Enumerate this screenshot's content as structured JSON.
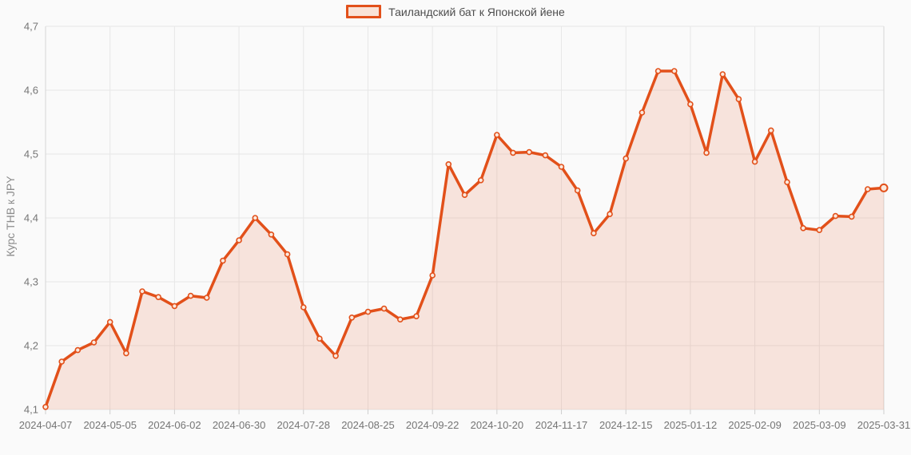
{
  "legend": {
    "label": "Таиландский бат к Японской йене"
  },
  "chart_data": {
    "type": "area",
    "title": "",
    "xlabel": "",
    "ylabel": "Курс THB к JPY",
    "series_name": "Таиландский бат к Японской йене",
    "legend_position": "top-center",
    "grid": true,
    "ylim": [
      4.1,
      4.7
    ],
    "y_tick_values": [
      4.1,
      4.2,
      4.3,
      4.4,
      4.5,
      4.6,
      4.7
    ],
    "y_tick_labels": [
      "4,1",
      "4,2",
      "4,3",
      "4,4",
      "4,5",
      "4,6",
      "4,7"
    ],
    "x_tick_indices": [
      0,
      4,
      8,
      12,
      16,
      20,
      24,
      28,
      32,
      36,
      40,
      44,
      48,
      52
    ],
    "x_tick_labels": [
      "2024-04-07",
      "2024-05-05",
      "2024-06-02",
      "2024-06-30",
      "2024-07-28",
      "2024-08-25",
      "2024-09-22",
      "2024-10-20",
      "2024-11-17",
      "2024-12-15",
      "2025-01-12",
      "2025-02-09",
      "2025-03-09",
      "2025-03-31"
    ],
    "dates": [
      "2024-04-07",
      "2024-04-14",
      "2024-04-21",
      "2024-04-28",
      "2024-05-05",
      "2024-05-12",
      "2024-05-19",
      "2024-05-26",
      "2024-06-02",
      "2024-06-09",
      "2024-06-16",
      "2024-06-23",
      "2024-06-30",
      "2024-07-07",
      "2024-07-14",
      "2024-07-21",
      "2024-07-28",
      "2024-08-04",
      "2024-08-11",
      "2024-08-18",
      "2024-08-25",
      "2024-09-01",
      "2024-09-08",
      "2024-09-15",
      "2024-09-22",
      "2024-09-29",
      "2024-10-06",
      "2024-10-13",
      "2024-10-20",
      "2024-10-27",
      "2024-11-03",
      "2024-11-10",
      "2024-11-17",
      "2024-11-24",
      "2024-12-01",
      "2024-12-08",
      "2024-12-15",
      "2024-12-22",
      "2024-12-29",
      "2025-01-05",
      "2025-01-12",
      "2025-01-19",
      "2025-01-26",
      "2025-02-02",
      "2025-02-09",
      "2025-02-16",
      "2025-02-23",
      "2025-03-02",
      "2025-03-09",
      "2025-03-16",
      "2025-03-23",
      "2025-03-30",
      "2025-03-31"
    ],
    "values": [
      4.104,
      4.175,
      4.193,
      4.205,
      4.237,
      4.188,
      4.285,
      4.276,
      4.262,
      4.278,
      4.275,
      4.333,
      4.365,
      4.4,
      4.374,
      4.343,
      4.26,
      4.211,
      4.184,
      4.244,
      4.253,
      4.258,
      4.241,
      4.246,
      4.31,
      4.484,
      4.436,
      4.459,
      4.53,
      4.502,
      4.503,
      4.498,
      4.48,
      4.443,
      4.376,
      4.406,
      4.493,
      4.565,
      4.63,
      4.63,
      4.578,
      4.502,
      4.625,
      4.586,
      4.488,
      4.537,
      4.456,
      4.384,
      4.381,
      4.403,
      4.402,
      4.445,
      4.447
    ],
    "colors": {
      "line": "#e2501a",
      "area_fill": "rgba(229,81,26,0.13)",
      "marker_fill": "#fbe9de",
      "grid": "#e7e7e7",
      "axis_line": "#d6d6d6",
      "tick_mark": "#cfcfcf",
      "tick_text": "#757575",
      "legend_text": "#4d4d4d",
      "background": "#fafafa"
    }
  }
}
